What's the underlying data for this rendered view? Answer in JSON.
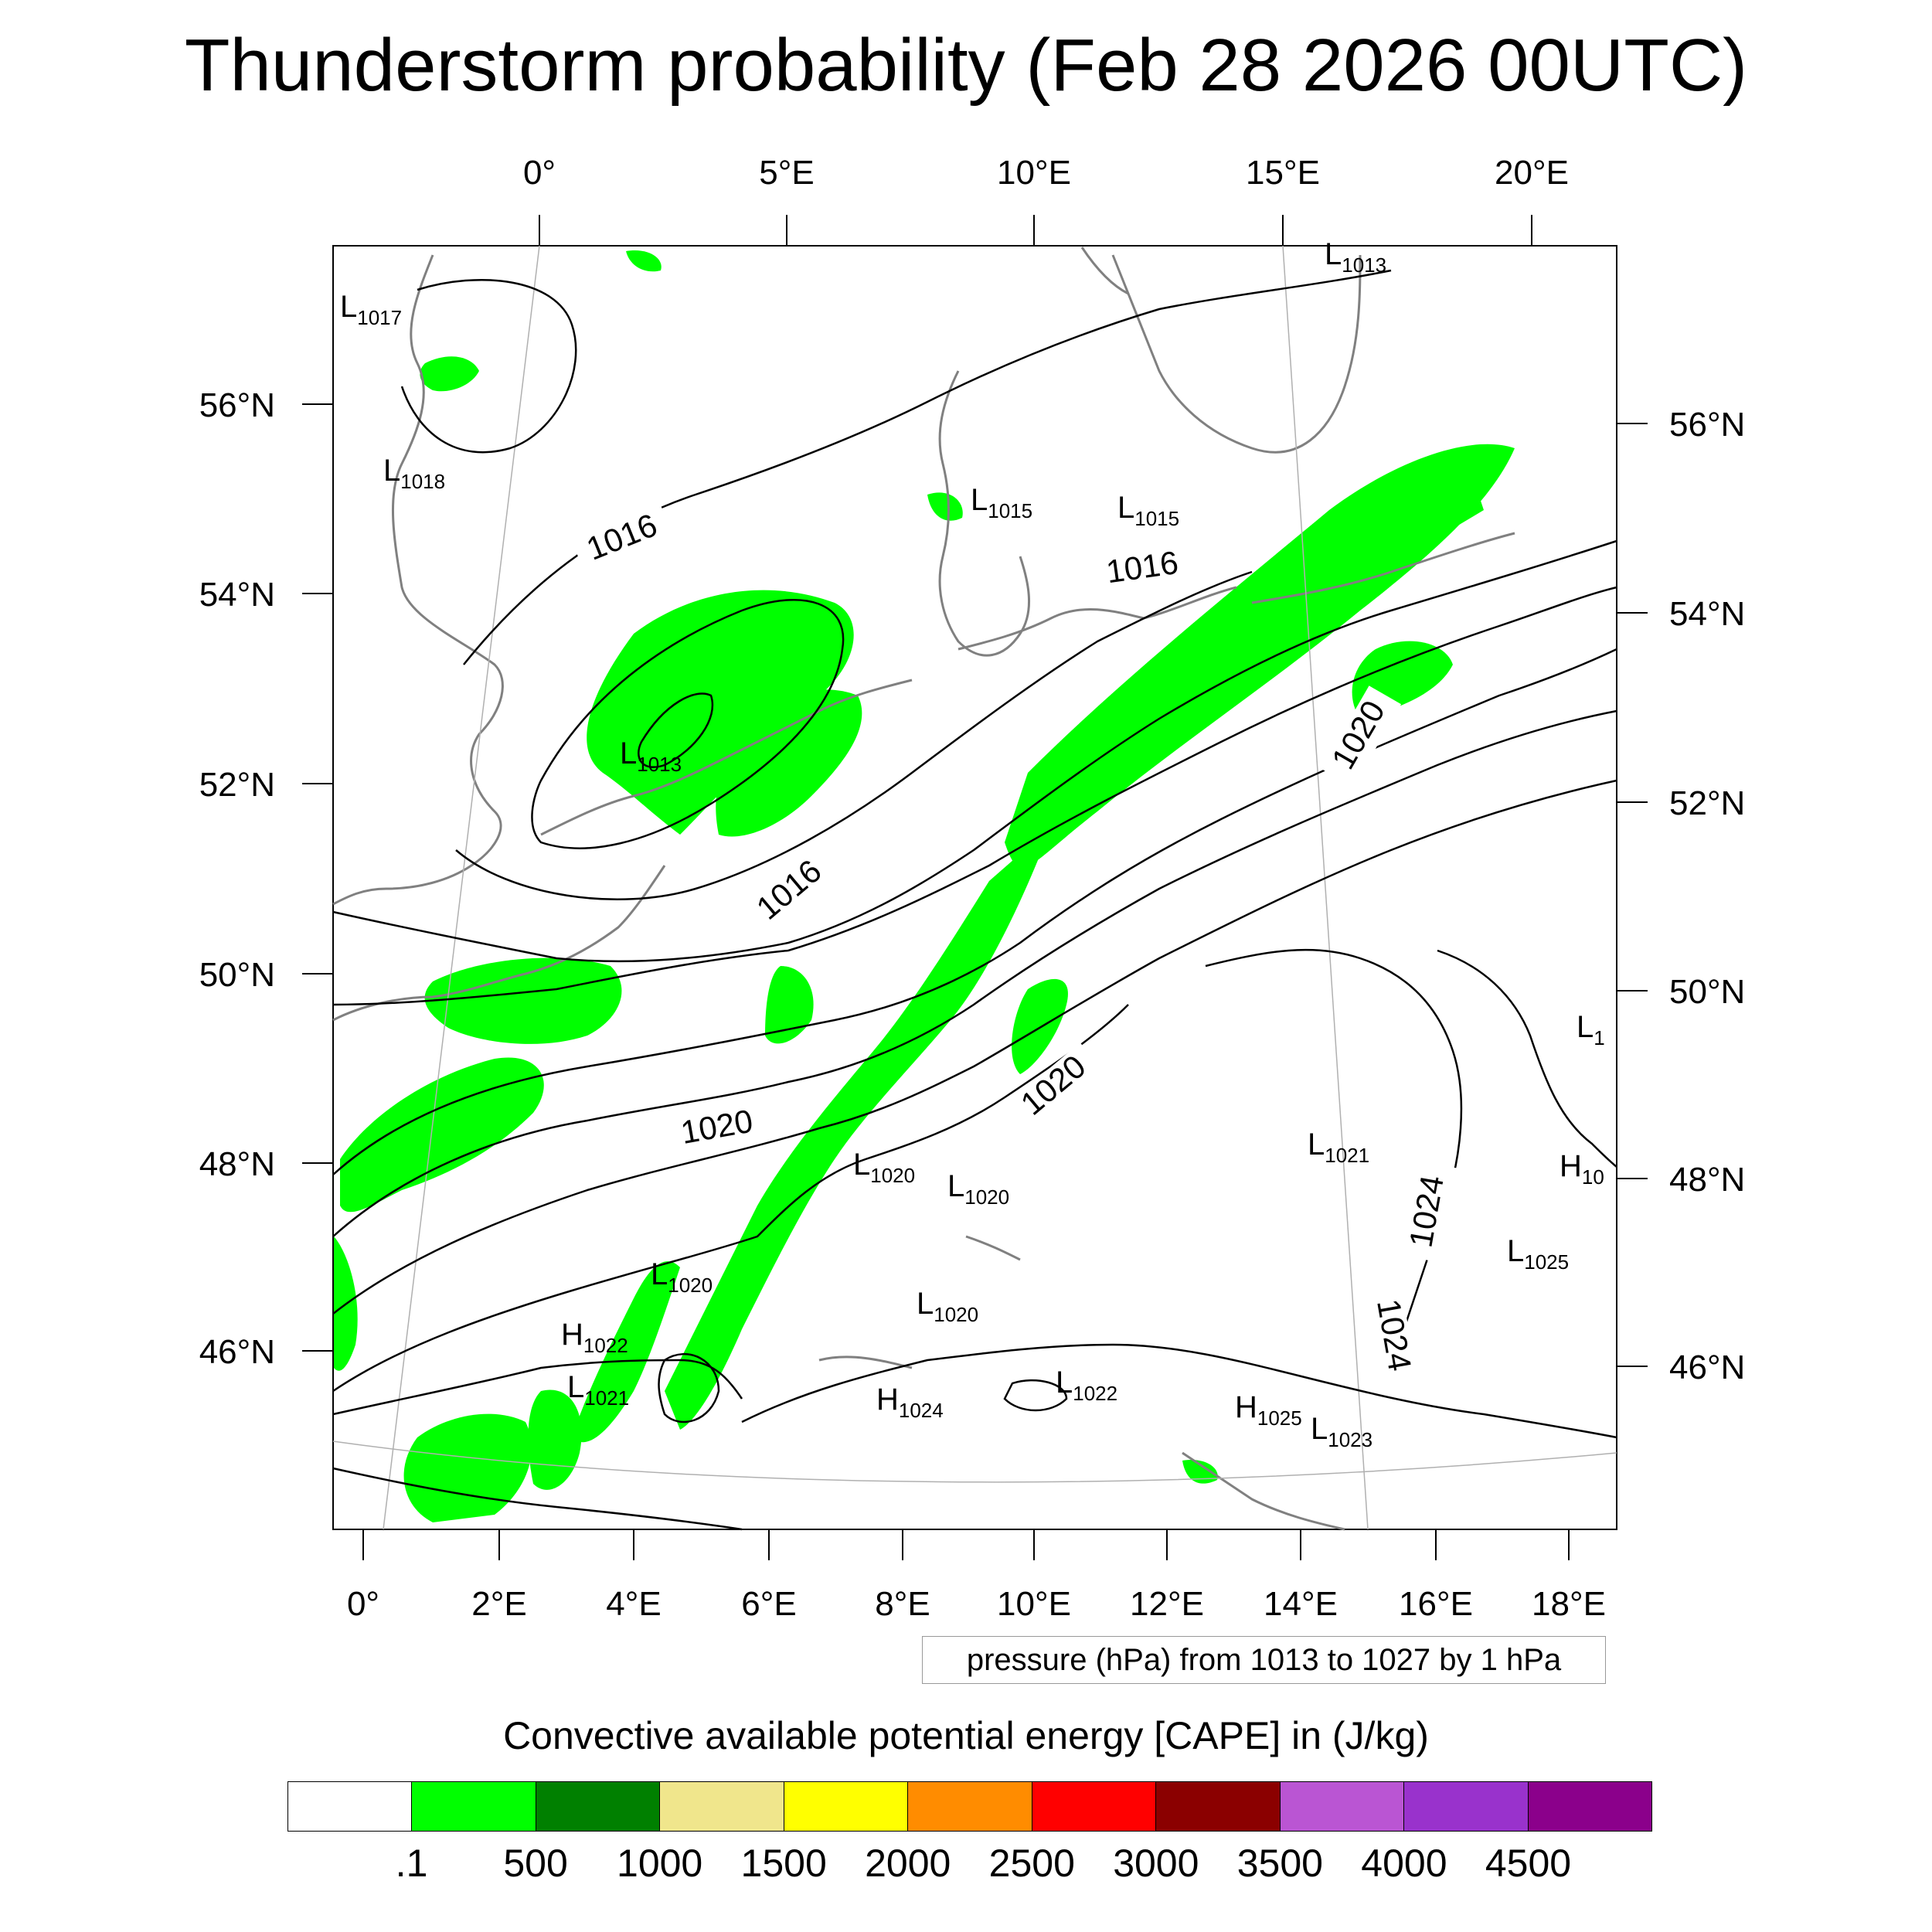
{
  "title": "Thunderstorm probability (Feb 28 2026 00UTC)",
  "top_lon_labels": [
    "0°",
    "5°E",
    "10°E",
    "15°E",
    "20°E"
  ],
  "bottom_lon_labels": [
    "0°",
    "2°E",
    "4°E",
    "6°E",
    "8°E",
    "10°E",
    "12°E",
    "14°E",
    "16°E",
    "18°E"
  ],
  "left_lat_labels": [
    "56°N",
    "54°N",
    "52°N",
    "50°N",
    "48°N",
    "46°N"
  ],
  "right_lat_labels": [
    "56°N",
    "54°N",
    "52°N",
    "50°N",
    "48°N",
    "46°N"
  ],
  "pressure_note": "pressure (hPa) from 1013 to 1027 by 1 hPa",
  "isobar_labels": [
    "1016",
    "1016",
    "1016",
    "1020",
    "1020",
    "1020",
    "1024",
    "1024"
  ],
  "centers": [
    {
      "type": "L",
      "value": "1017"
    },
    {
      "type": "L",
      "value": "1018"
    },
    {
      "type": "L",
      "value": "1013"
    },
    {
      "type": "L",
      "value": "1013"
    },
    {
      "type": "L",
      "value": "1015"
    },
    {
      "type": "L",
      "value": "1015"
    },
    {
      "type": "L",
      "value": "1020"
    },
    {
      "type": "L",
      "value": "1020"
    },
    {
      "type": "L",
      "value": "1020"
    },
    {
      "type": "L",
      "value": "1020"
    },
    {
      "type": "H",
      "value": "1022"
    },
    {
      "type": "L",
      "value": "1021"
    },
    {
      "type": "H",
      "value": "1024"
    },
    {
      "type": "L",
      "value": "1022"
    },
    {
      "type": "H",
      "value": "1025"
    },
    {
      "type": "L",
      "value": "1023"
    },
    {
      "type": "L",
      "value": "1021"
    },
    {
      "type": "L",
      "value": "1025"
    },
    {
      "type": "H",
      "value": "10"
    },
    {
      "type": "L",
      "value": "1"
    }
  ],
  "colorbar": {
    "title": "Convective available potential energy [CAPE] in (J/kg)",
    "colors": [
      "#ffffff",
      "#00ff00",
      "#008000",
      "#f0e68c",
      "#ffff00",
      "#ff8c00",
      "#ff0000",
      "#8b0000",
      "#ba55d3",
      "#9932cc",
      "#8b008b"
    ],
    "tick_labels": [
      ".1",
      "500",
      "1000",
      "1500",
      "2000",
      "2500",
      "3000",
      "3500",
      "4000",
      "4500"
    ]
  },
  "colors": {
    "cape_green": "#00ff00",
    "coastline": "#808080",
    "isobar": "#000000"
  }
}
